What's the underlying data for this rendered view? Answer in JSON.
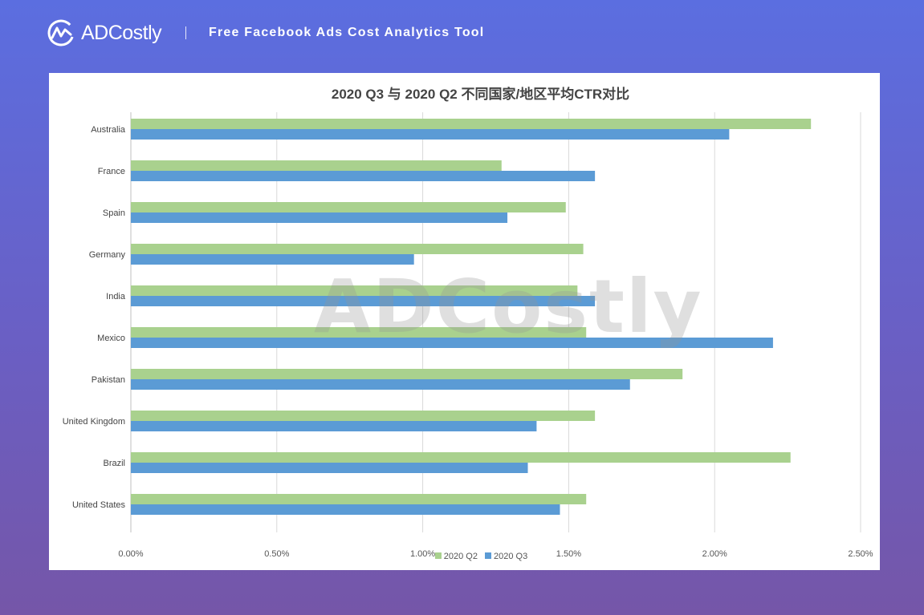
{
  "header": {
    "brand": "ADCostly",
    "tagline": "Free Facebook Ads Cost Analytics Tool",
    "logo_icon": "adcostly-logo-icon"
  },
  "watermark": "ADCostly",
  "colors": {
    "q2": "#a9d18e",
    "q3": "#5b9bd5",
    "grid": "#d9d9d9"
  },
  "chart_data": {
    "type": "bar",
    "orientation": "horizontal",
    "title": "2020 Q3 与 2020 Q2 不同国家/地区平均CTR对比",
    "xlabel": "",
    "ylabel": "",
    "xlim": [
      0,
      0.025
    ],
    "x_ticks": [
      "0.00%",
      "0.50%",
      "1.00%",
      "1.50%",
      "2.00%",
      "2.50%"
    ],
    "categories": [
      "Australia",
      "France",
      "Spain",
      "Germany",
      "India",
      "Mexico",
      "Pakistan",
      "United Kingdom",
      "Brazil",
      "United States"
    ],
    "series": [
      {
        "name": "2020 Q2",
        "values": [
          0.0233,
          0.0127,
          0.0149,
          0.0155,
          0.0153,
          0.0156,
          0.0189,
          0.0159,
          0.0226,
          0.0156
        ]
      },
      {
        "name": "2020 Q3",
        "values": [
          0.0205,
          0.0159,
          0.0129,
          0.0097,
          0.0159,
          0.022,
          0.0171,
          0.0139,
          0.0136,
          0.0147
        ]
      }
    ],
    "legend_position": "bottom",
    "grid": true
  }
}
